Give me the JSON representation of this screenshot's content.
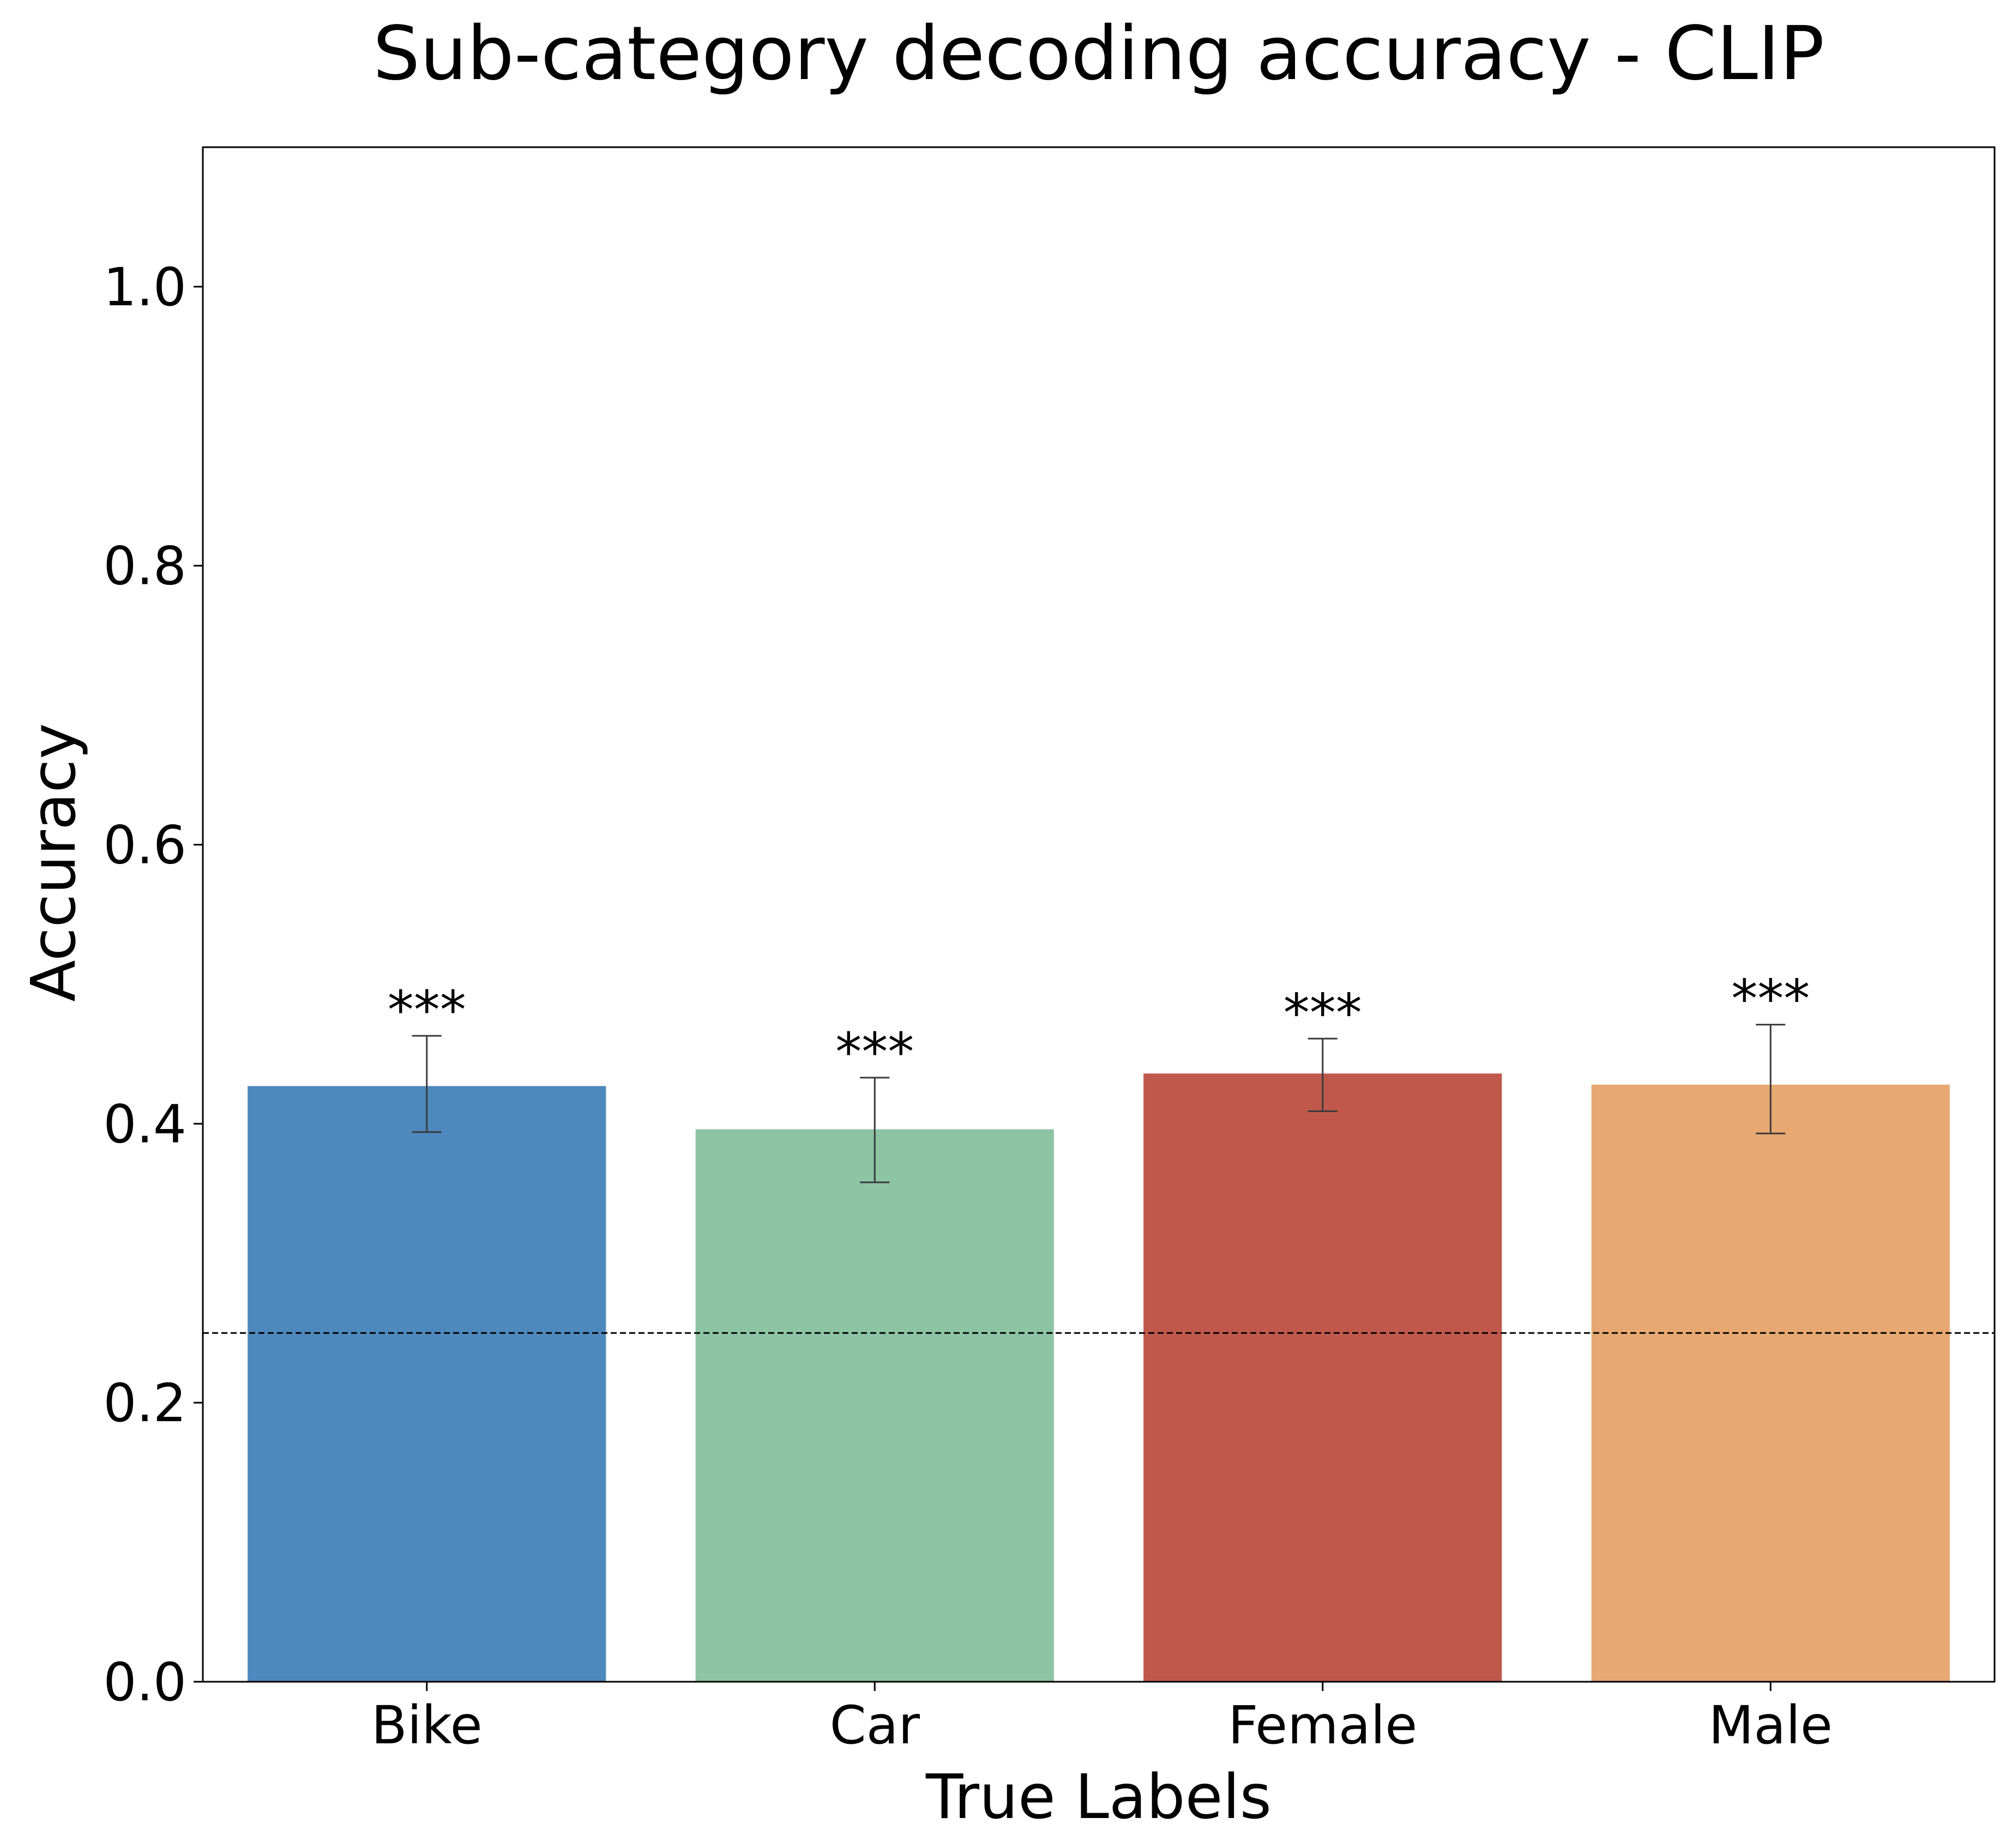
{
  "chart_data": {
    "type": "bar",
    "title": "Sub-category decoding accuracy - CLIP",
    "xlabel": "True Labels",
    "ylabel": "Accuracy",
    "categories": [
      "Bike",
      "Car",
      "Female",
      "Male"
    ],
    "values": [
      0.427,
      0.396,
      0.436,
      0.428
    ],
    "error_low": [
      0.394,
      0.358,
      0.409,
      0.393
    ],
    "error_high": [
      0.463,
      0.433,
      0.461,
      0.471
    ],
    "significance": [
      "***",
      "***",
      "***",
      "***"
    ],
    "colors": [
      "#4e89be",
      "#8cc4a4",
      "#c0594c",
      "#e7a871"
    ],
    "ylim": [
      0,
      1.1
    ],
    "yticks": [
      0.0,
      0.2,
      0.4,
      0.6,
      0.8,
      1.0
    ],
    "ytick_labels": [
      "0.0",
      "0.2",
      "0.4",
      "0.6",
      "0.8",
      "1.0"
    ],
    "chance_level": 0.25,
    "grid": false,
    "legend": "none"
  }
}
